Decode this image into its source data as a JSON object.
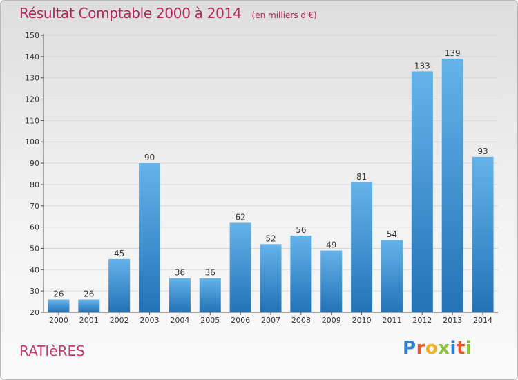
{
  "header": {
    "title": "Résultat Comptable 2000 à 2014",
    "unit": "(en milliers d'€)"
  },
  "footer": {
    "commune": "RATIèRES",
    "logo_letters": [
      "P",
      "r",
      "o",
      "x",
      "i",
      "t",
      "i"
    ],
    "logo_colors": [
      "#2f7fcf",
      "#e8562a",
      "#f0b020",
      "#8ac23a",
      "#2f7fcf",
      "#e8562a",
      "#8ac23a"
    ]
  },
  "colors": {
    "bar_light": "#65b3ea",
    "bar_dark": "#2273b7",
    "title": "#b5245a",
    "axis": "#555555",
    "grid": "#d8d8d8"
  },
  "chart_data": {
    "type": "bar",
    "title": "Résultat Comptable 2000 à 2014",
    "xlabel": "",
    "ylabel": "",
    "categories": [
      "2000",
      "2001",
      "2002",
      "2003",
      "2004",
      "2005",
      "2006",
      "2007",
      "2008",
      "2009",
      "2010",
      "2011",
      "2012",
      "2013",
      "2014"
    ],
    "values": [
      26,
      26,
      45,
      90,
      36,
      36,
      62,
      52,
      56,
      49,
      81,
      54,
      133,
      139,
      93
    ],
    "ylim": [
      20,
      150
    ],
    "yticks": [
      20,
      30,
      40,
      50,
      60,
      70,
      80,
      90,
      100,
      110,
      120,
      130,
      140,
      150
    ],
    "grid": true,
    "data_labels": true
  }
}
